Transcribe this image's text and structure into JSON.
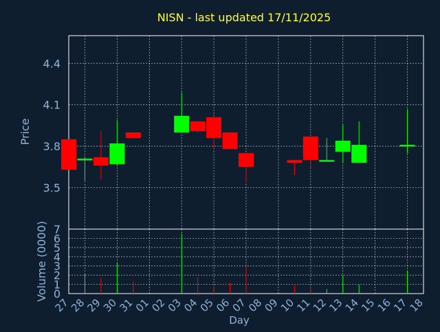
{
  "chart_data": {
    "type": "candlestick",
    "title": "NISN - last updated 17/11/2025",
    "colors": {
      "background": "#0f1e2f",
      "title": "#ffff33",
      "axis_text": "#8fb3d9",
      "grid": "#ffffff",
      "up": "#00ff00",
      "down": "#ff0000"
    },
    "x": {
      "label": "Day",
      "tick_labels": [
        "27",
        "28",
        "29",
        "30",
        "31",
        "01",
        "02",
        "03",
        "04",
        "05",
        "06",
        "07",
        "08",
        "09",
        "10",
        "11",
        "12",
        "13",
        "14",
        "15",
        "16",
        "17",
        "18"
      ]
    },
    "price_panel": {
      "ylabel": "Price",
      "ylim": [
        3.2,
        4.6
      ],
      "ticks": [
        "3.5",
        "3.8",
        "4.1",
        "4.4"
      ],
      "candles": [
        {
          "day": "27",
          "open": 3.85,
          "high": 3.85,
          "low": 3.63,
          "close": 3.63
        },
        {
          "day": "28",
          "open": 3.7,
          "high": 3.72,
          "low": 3.55,
          "close": 3.71
        },
        {
          "day": "29",
          "open": 3.72,
          "high": 3.91,
          "low": 3.56,
          "close": 3.66
        },
        {
          "day": "30",
          "open": 3.67,
          "high": 3.99,
          "low": 3.66,
          "close": 3.82
        },
        {
          "day": "31",
          "open": 3.9,
          "high": 3.9,
          "low": 3.86,
          "close": 3.86
        },
        {
          "day": "03",
          "open": 3.9,
          "high": 4.19,
          "low": 3.9,
          "close": 4.02
        },
        {
          "day": "04",
          "open": 3.98,
          "high": 3.98,
          "low": 3.9,
          "close": 3.91
        },
        {
          "day": "05",
          "open": 4.01,
          "high": 4.01,
          "low": 3.78,
          "close": 3.86
        },
        {
          "day": "06",
          "open": 3.9,
          "high": 3.9,
          "low": 3.78,
          "close": 3.78
        },
        {
          "day": "07",
          "open": 3.75,
          "high": 3.75,
          "low": 3.54,
          "close": 3.65
        },
        {
          "day": "10",
          "open": 3.7,
          "high": 3.7,
          "low": 3.59,
          "close": 3.68
        },
        {
          "day": "11",
          "open": 3.87,
          "high": 3.87,
          "low": 3.65,
          "close": 3.7
        },
        {
          "day": "12",
          "open": 3.69,
          "high": 3.86,
          "low": 3.69,
          "close": 3.7
        },
        {
          "day": "13",
          "open": 3.76,
          "high": 3.96,
          "low": 3.68,
          "close": 3.84
        },
        {
          "day": "14",
          "open": 3.68,
          "high": 3.98,
          "low": 3.68,
          "close": 3.81
        },
        {
          "day": "17",
          "open": 3.8,
          "high": 4.07,
          "low": 3.75,
          "close": 3.81
        }
      ]
    },
    "volume_panel": {
      "ylabel": "Volume (0000)",
      "ylim": [
        0,
        7
      ],
      "ticks": [
        "0",
        "1",
        "2",
        "3",
        "4",
        "5",
        "6",
        "7"
      ],
      "bars": [
        {
          "day": "27",
          "value": 0.0,
          "dir": "down"
        },
        {
          "day": "28",
          "value": 2.1,
          "dir": "up"
        },
        {
          "day": "29",
          "value": 1.7,
          "dir": "down"
        },
        {
          "day": "30",
          "value": 3.3,
          "dir": "up"
        },
        {
          "day": "31",
          "value": 1.3,
          "dir": "down"
        },
        {
          "day": "03",
          "value": 6.5,
          "dir": "up"
        },
        {
          "day": "04",
          "value": 1.8,
          "dir": "down"
        },
        {
          "day": "05",
          "value": 0.8,
          "dir": "down"
        },
        {
          "day": "06",
          "value": 1.2,
          "dir": "down"
        },
        {
          "day": "07",
          "value": 3.0,
          "dir": "down"
        },
        {
          "day": "10",
          "value": 0.9,
          "dir": "down"
        },
        {
          "day": "11",
          "value": 0.8,
          "dir": "down"
        },
        {
          "day": "12",
          "value": 0.5,
          "dir": "up"
        },
        {
          "day": "13",
          "value": 2.0,
          "dir": "up"
        },
        {
          "day": "14",
          "value": 1.0,
          "dir": "up"
        },
        {
          "day": "17",
          "value": 2.5,
          "dir": "up"
        }
      ]
    }
  }
}
